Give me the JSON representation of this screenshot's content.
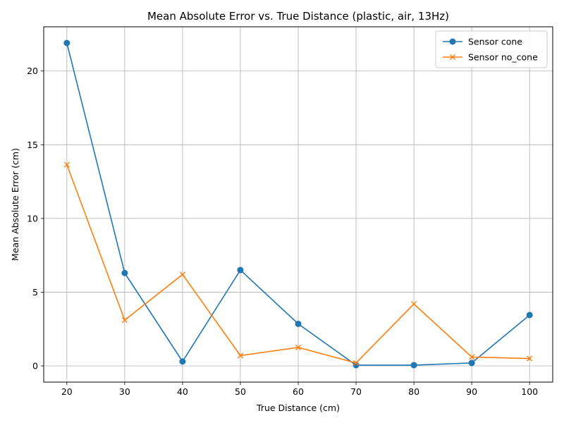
{
  "chart_data": {
    "type": "line",
    "title": "Mean Absolute Error vs. True Distance (plastic, air, 13Hz)",
    "xlabel": "True Distance (cm)",
    "ylabel": "Mean Absolute Error (cm)",
    "x": [
      20,
      30,
      40,
      50,
      60,
      70,
      80,
      90,
      100
    ],
    "xlim": [
      16,
      104
    ],
    "ylim": [
      -1.1,
      23
    ],
    "xticks": [
      20,
      30,
      40,
      50,
      60,
      70,
      80,
      90,
      100
    ],
    "yticks": [
      0,
      5,
      10,
      15,
      20
    ],
    "grid": true,
    "legend_position": "top-right",
    "series": [
      {
        "name": "Sensor cone",
        "marker": "circle",
        "color": "#1f77b4",
        "values": [
          21.9,
          6.3,
          0.3,
          6.5,
          2.85,
          0.05,
          0.05,
          0.2,
          3.45
        ]
      },
      {
        "name": "Sensor no_cone",
        "marker": "x",
        "color": "#ff7f0e",
        "values": [
          13.65,
          3.1,
          6.2,
          0.7,
          1.25,
          0.2,
          4.2,
          0.6,
          0.5
        ]
      }
    ]
  }
}
